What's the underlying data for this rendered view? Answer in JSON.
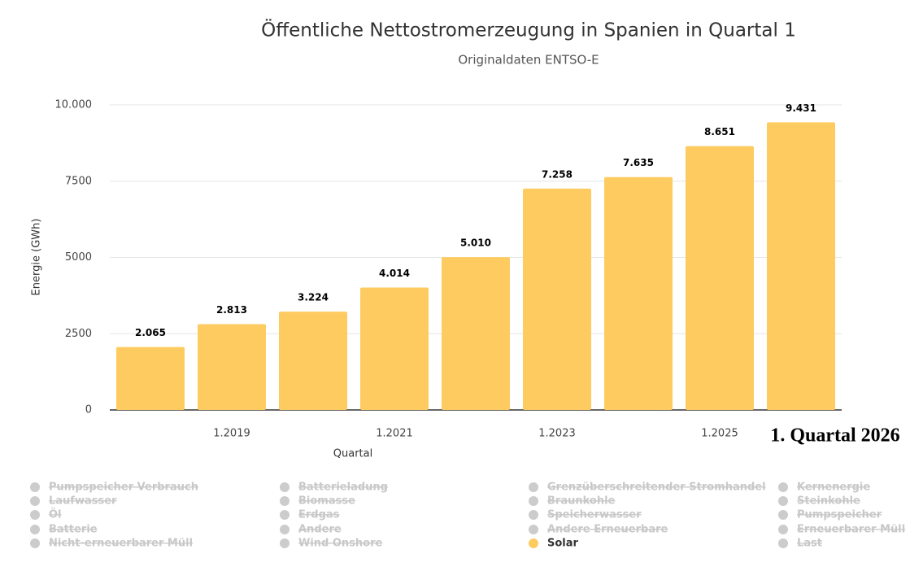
{
  "chart_data": {
    "type": "bar",
    "title": "Öffentliche Nettostromerzeugung in Spanien in Quartal 1",
    "subtitle": "Originaldaten ENTSO-E",
    "y_label": "Energie (GWh)",
    "x_label": "Quartal",
    "annotation": "1. Quartal 2026",
    "categories": [
      null,
      "1.2019",
      null,
      "1.2021",
      null,
      "1.2023",
      null,
      "1.2025",
      null
    ],
    "series": [
      {
        "color": "#fecb61",
        "values": [
          2065,
          2813,
          3224,
          4014,
          5010,
          7258,
          7635,
          8651,
          9431
        ],
        "value_labels": [
          "2.065",
          "2.813",
          "3.224",
          "4.014",
          "5.010",
          "7.258",
          "7.635",
          "8.651",
          "9.431"
        ]
      }
    ],
    "ylim": [
      0,
      10000
    ],
    "yticks": [
      0,
      2500,
      5000,
      7500,
      {
        "value": 10000,
        "label": "10.000"
      }
    ],
    "grid": true,
    "legend_hidden_color": "#cccccc",
    "legend": [
      {
        "name": "Pumpspeicher Verbrauch",
        "hidden": true
      },
      {
        "name": "Batterieladung",
        "hidden": true
      },
      {
        "name": "Grenzüberschreitender Stromhandel",
        "hidden": true
      },
      {
        "name": "Kernenergie",
        "hidden": true
      },
      {
        "name": "Laufwasser",
        "hidden": true
      },
      {
        "name": "Biomasse",
        "hidden": true
      },
      {
        "name": "Braunkohle",
        "hidden": true
      },
      {
        "name": "Steinkohle",
        "hidden": true
      },
      {
        "name": "Öl",
        "hidden": true
      },
      {
        "name": "Erdgas",
        "hidden": true
      },
      {
        "name": "Speicherwasser",
        "hidden": true
      },
      {
        "name": "Pumpspeicher",
        "hidden": true
      },
      {
        "name": "Batterie",
        "hidden": true
      },
      {
        "name": "Andere",
        "hidden": true
      },
      {
        "name": "Andere Erneuerbare",
        "hidden": true
      },
      {
        "name": "Erneuerbarer Müll",
        "hidden": true
      },
      {
        "name": "Nicht-erneuerbarer Müll",
        "hidden": true
      },
      {
        "name": "Wind Onshore",
        "hidden": true
      },
      {
        "name": "Solar",
        "hidden": false
      },
      {
        "name": "Last",
        "hidden": true
      }
    ]
  }
}
